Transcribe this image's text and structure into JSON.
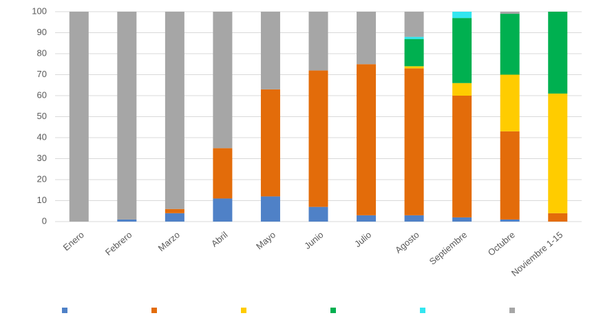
{
  "chart_data": {
    "type": "stacked_bar",
    "categories": [
      "Enero",
      "Febrero",
      "Marzo",
      "Abril",
      "Mayo",
      "Junio",
      "Julio",
      "Agosto",
      "Septiembre",
      "Octubre",
      "Noviembre 1-15"
    ],
    "series": [
      {
        "color": "#4f81c7",
        "values": [
          0,
          1,
          4,
          11,
          12,
          7,
          3,
          3,
          2,
          1,
          0
        ]
      },
      {
        "color": "#e36c0a",
        "values": [
          0,
          0,
          2,
          24,
          51,
          65,
          72,
          70,
          58,
          42,
          4
        ]
      },
      {
        "color": "#ffcc00",
        "values": [
          0,
          0,
          0,
          0,
          0,
          0,
          0,
          1,
          6,
          27,
          57
        ]
      },
      {
        "color": "#00b050",
        "values": [
          0,
          0,
          0,
          0,
          0,
          0,
          0,
          13,
          31,
          29,
          39
        ]
      },
      {
        "color": "#33e6f0",
        "values": [
          0,
          0,
          0,
          0,
          0,
          0,
          0,
          1,
          3,
          0,
          0
        ]
      },
      {
        "color": "#a6a6a6",
        "values": [
          100,
          99,
          94,
          65,
          37,
          28,
          25,
          12,
          0,
          1,
          0
        ]
      }
    ],
    "ylim": [
      0,
      100
    ],
    "yticks": [
      0,
      10,
      20,
      30,
      40,
      50,
      60,
      70,
      80,
      90,
      100
    ],
    "grid": true
  }
}
